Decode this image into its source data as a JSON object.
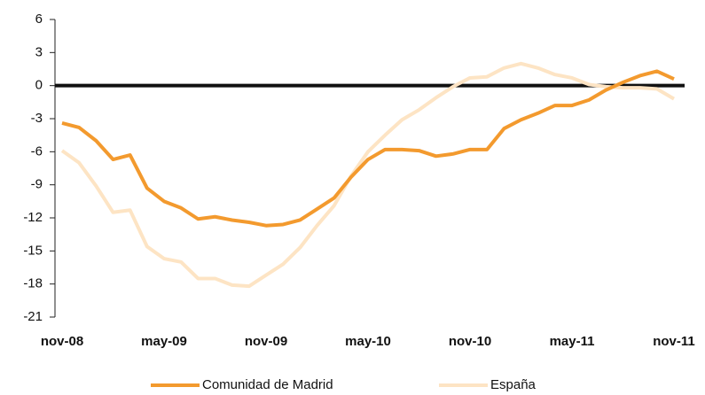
{
  "chart_data": {
    "type": "line",
    "categories": [
      "nov-08",
      null,
      null,
      null,
      null,
      null,
      "may-09",
      null,
      null,
      null,
      null,
      null,
      "nov-09",
      null,
      null,
      null,
      null,
      null,
      "may-10",
      null,
      null,
      null,
      null,
      null,
      "nov-10",
      null,
      null,
      null,
      null,
      null,
      "may-11",
      null,
      null,
      null,
      null,
      null,
      "nov-11"
    ],
    "series": [
      {
        "name": "Comunidad de Madrid",
        "color": "#f39a2e",
        "values": [
          -3.4,
          -3.8,
          -5,
          -6.7,
          -6.3,
          -9.3,
          -10.5,
          -11.1,
          -12.1,
          -11.9,
          -12.2,
          -12.4,
          -12.7,
          -12.6,
          -12.2,
          -11.2,
          -10.2,
          -8.3,
          -6.7,
          -5.8,
          -5.8,
          -5.9,
          -6.4,
          -6.2,
          -5.8,
          -5.8,
          -3.9,
          -3.1,
          -2.5,
          -1.8,
          -1.8,
          -1.3,
          -0.4,
          0.3,
          0.9,
          1.3,
          0.6
        ]
      },
      {
        "name": "España",
        "color": "#fde4c4",
        "values": [
          -5.9,
          -7.0,
          -9.1,
          -11.5,
          -11.3,
          -14.6,
          -15.7,
          -16.0,
          -17.5,
          -17.5,
          -18.1,
          -18.2,
          -17.2,
          -16.2,
          -14.7,
          -12.7,
          -10.9,
          -8.2,
          -6.0,
          -4.5,
          -3.1,
          -2.2,
          -1.1,
          -0.1,
          0.7,
          0.8,
          1.6,
          2.0,
          1.6,
          1.0,
          0.7,
          0.1,
          -0.1,
          -0.2,
          -0.2,
          -0.3,
          -1.2
        ]
      }
    ],
    "ylim": [
      -21,
      6
    ],
    "yticks": [
      -21,
      -18,
      -15,
      -12,
      -9,
      -6,
      -3,
      0,
      3,
      6
    ],
    "zero_line": true,
    "grid": false,
    "legend": "bottom"
  }
}
